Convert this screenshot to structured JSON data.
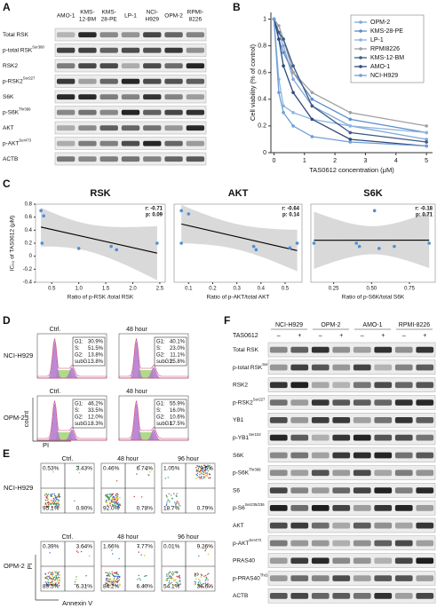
{
  "panel_labels": [
    "A",
    "B",
    "C",
    "D",
    "E",
    "F"
  ],
  "panel_a": {
    "cell_lines": [
      [
        "AMO-1"
      ],
      [
        "KMS-",
        "12-BM"
      ],
      [
        "KMS-",
        "28-PE"
      ],
      [
        "LP-1"
      ],
      [
        "NCI-",
        "H929"
      ],
      [
        "OPM-2"
      ],
      [
        "RPMI-",
        "8226"
      ]
    ],
    "proteins": [
      {
        "name": "Total RSK"
      },
      {
        "name": "p-total RSK",
        "sup": "Ser380"
      },
      {
        "name": "RSK2"
      },
      {
        "name": "p-RSK2",
        "sup": "Ser227"
      },
      {
        "name": "S6K"
      },
      {
        "name": "p-S6K",
        "sup": "Thr389"
      },
      {
        "name": "AKT"
      },
      {
        "name": "p-AKT",
        "sup": "Ser473"
      },
      {
        "name": "ACTB"
      }
    ]
  },
  "chart_data": [
    {
      "type": "line",
      "x_label": "TAS0612 concentration (μM)",
      "y_label": "Cell viability (% of control)",
      "x": [
        0,
        0.16,
        0.31,
        0.63,
        1.25,
        2.5,
        5
      ],
      "xlim": [
        -0.1,
        5.2
      ],
      "ylim": [
        0,
        1.05
      ],
      "xticks": [
        0,
        1,
        2,
        3,
        4,
        5
      ],
      "yticks": [
        0,
        0.2,
        0.4,
        0.6,
        0.8,
        1
      ],
      "legend": "upper right",
      "series": [
        {
          "name": "OPM-2",
          "color": "#7fa7d6",
          "values": [
            1,
            0.9,
            0.8,
            0.55,
            0.35,
            0.2,
            0.1
          ]
        },
        {
          "name": "KMS-28-PE",
          "color": "#5b8ec8",
          "values": [
            1,
            0.85,
            0.75,
            0.6,
            0.4,
            0.25,
            0.15
          ]
        },
        {
          "name": "LP-1",
          "color": "#8ab4e0",
          "values": [
            1,
            0.55,
            0.35,
            0.3,
            0.25,
            0.2,
            0.15
          ]
        },
        {
          "name": "RPMI8226",
          "color": "#a0a0a0",
          "values": [
            1,
            0.95,
            0.85,
            0.6,
            0.45,
            0.3,
            0.2
          ]
        },
        {
          "name": "KMS-12-BM",
          "color": "#3c5a86",
          "values": [
            1,
            0.9,
            0.85,
            0.65,
            0.35,
            0.15,
            0.08
          ]
        },
        {
          "name": "AMO-1",
          "color": "#2e4a78",
          "values": [
            1,
            0.85,
            0.65,
            0.45,
            0.25,
            0.1,
            0.05
          ]
        },
        {
          "name": "NCI-H929",
          "color": "#6f9fd8",
          "values": [
            1,
            0.45,
            0.3,
            0.2,
            0.12,
            0.08,
            0.05
          ]
        }
      ]
    },
    {
      "type": "scatter",
      "title": "RSK",
      "x_label": "Ratio of p-RSK /total RSK",
      "y_label": "IC₅₀ of TAS0612 (μM)",
      "annotations": [
        "r: -0.71",
        "p: 0.09"
      ],
      "color": "#4a90d9",
      "x": [
        0.3,
        0.35,
        0.32,
        1.0,
        1.6,
        1.7,
        2.45
      ],
      "values": [
        0.7,
        0.62,
        0.2,
        0.12,
        0.15,
        0.1,
        0.2
      ],
      "xlim": [
        0.2,
        2.6
      ],
      "ylim": [
        -0.4,
        0.8
      ],
      "xticks": [
        0.5,
        {
          "value": 1,
          "label": "1.0"
        },
        1.5,
        {
          "value": 2,
          "label": "2.0"
        },
        2.5
      ],
      "yticks": [
        -0.4,
        -0.2,
        0,
        0.2,
        0.4,
        0.6,
        0.8
      ]
    },
    {
      "type": "scatter",
      "title": "AKT",
      "x_label": "Ratio of p-AKT/total AKT",
      "annotations": [
        "r: -0.64",
        "p: 0.14"
      ],
      "color": "#4a90d9",
      "x": [
        0.07,
        0.1,
        0.07,
        0.37,
        0.38,
        0.55,
        0.52
      ],
      "values": [
        0.7,
        0.65,
        0.2,
        0.15,
        0.1,
        0.2,
        0.13
      ],
      "xlim": [
        0.04,
        0.57
      ],
      "ylim": [
        -0.4,
        0.8
      ],
      "xticks": [
        0.1,
        0.2,
        0.3,
        0.4,
        0.5
      ]
    },
    {
      "type": "scatter",
      "title": "S6K",
      "x_label": "Ratio of p-S6K/total S6K",
      "annotations": [
        "r: -0.18",
        "p: 0.71"
      ],
      "color": "#4a90d9",
      "x": [
        0.12,
        0.4,
        0.42,
        0.52,
        0.55,
        0.65,
        0.88
      ],
      "values": [
        0.2,
        0.2,
        0.15,
        0.7,
        0.12,
        0.15,
        0.2
      ],
      "xlim": [
        0.1,
        0.92
      ],
      "ylim": [
        -0.4,
        0.8
      ],
      "xticks": [
        0.25,
        {
          "value": 0.5,
          "label": "0.50"
        },
        0.75
      ]
    }
  ],
  "panel_d": {
    "y_label": "count",
    "x_label": "PI",
    "samples": [
      {
        "cell_line": "NCI-H929",
        "plots": [
          {
            "condition": "Ctrl.",
            "stats": [
              [
                "G1:",
                "30.9%"
              ],
              [
                "S:",
                "51.5%"
              ],
              [
                "G2:",
                "13.8%"
              ],
              [
                "subG1:",
                "3.8%"
              ]
            ]
          },
          {
            "condition": "48 hour",
            "stats": [
              [
                "G1:",
                "40.1%"
              ],
              [
                "S:",
                "23.0%"
              ],
              [
                "G2:",
                "11.1%"
              ],
              [
                "subG1:",
                "25.8%"
              ]
            ]
          }
        ]
      },
      {
        "cell_line": "OPM-2",
        "plots": [
          {
            "condition": "Ctrl.",
            "stats": [
              [
                "G1:",
                "46.2%"
              ],
              [
                "S:",
                "33.5%"
              ],
              [
                "G2:",
                "12.0%"
              ],
              [
                "subG1:",
                "8.3%"
              ]
            ]
          },
          {
            "condition": "48 hour",
            "stats": [
              [
                "G1:",
                "55.9%"
              ],
              [
                "S:",
                "16.0%"
              ],
              [
                "G2:",
                "10.6%"
              ],
              [
                "subG1:",
                "17.5%"
              ]
            ]
          }
        ]
      }
    ]
  },
  "panel_e": {
    "y_label": "PI",
    "x_label": "Annexin V",
    "samples": [
      {
        "cell_line": "NCI-H929",
        "plots": [
          {
            "condition": "Ctrl.",
            "quadrants": [
              "0.53%",
              "3.43%",
              "95.1%",
              "0.90%"
            ]
          },
          {
            "condition": "48 hour",
            "quadrants": [
              "0.46%",
              "6.74%",
              "92.0%",
              "0.78%"
            ]
          },
          {
            "condition": "96 hour",
            "quadrants": [
              "1.05%",
              "79.5%",
              "18.7%",
              "0.79%"
            ]
          }
        ]
      },
      {
        "cell_line": "OPM-2",
        "plots": [
          {
            "condition": "Ctrl.",
            "quadrants": [
              "0.39%",
              "3.64%",
              "89.5%",
              "6.31%"
            ]
          },
          {
            "condition": "48 hour",
            "quadrants": [
              "1.66%",
              "7.77%",
              "84.2%",
              "6.40%"
            ]
          },
          {
            "condition": "96 hour",
            "quadrants": [
              "0.01%",
              "9.26%",
              "54.1%",
              "36.6%"
            ]
          }
        ]
      }
    ]
  },
  "panel_f": {
    "cell_lines": [
      "NCI-H929",
      "OPM-2",
      "AMO-1",
      "RPMI-8226"
    ],
    "treatment": "TAS0612",
    "signs": [
      "–",
      "+"
    ],
    "proteins": [
      {
        "name": "Total RSK"
      },
      {
        "name": "p-total RSK",
        "sup": "Ser380"
      },
      {
        "name": "RSK2"
      },
      {
        "name": "p-RSK2",
        "sup": "Ser227"
      },
      {
        "name": "YB1"
      },
      {
        "name": "p-YB1",
        "sup": "Ser102"
      },
      {
        "name": "S6K"
      },
      {
        "name": "p-S6K",
        "sup": "Thr389"
      },
      {
        "name": "S6"
      },
      {
        "name": "p-S6",
        "sup": "Ser235/236"
      },
      {
        "name": "AKT"
      },
      {
        "name": "p-AKT",
        "sup": "Ser473"
      },
      {
        "name": "PRAS40"
      },
      {
        "name": "p-PRAS40",
        "sup": "Thr246"
      },
      {
        "name": "ACTB"
      }
    ]
  }
}
